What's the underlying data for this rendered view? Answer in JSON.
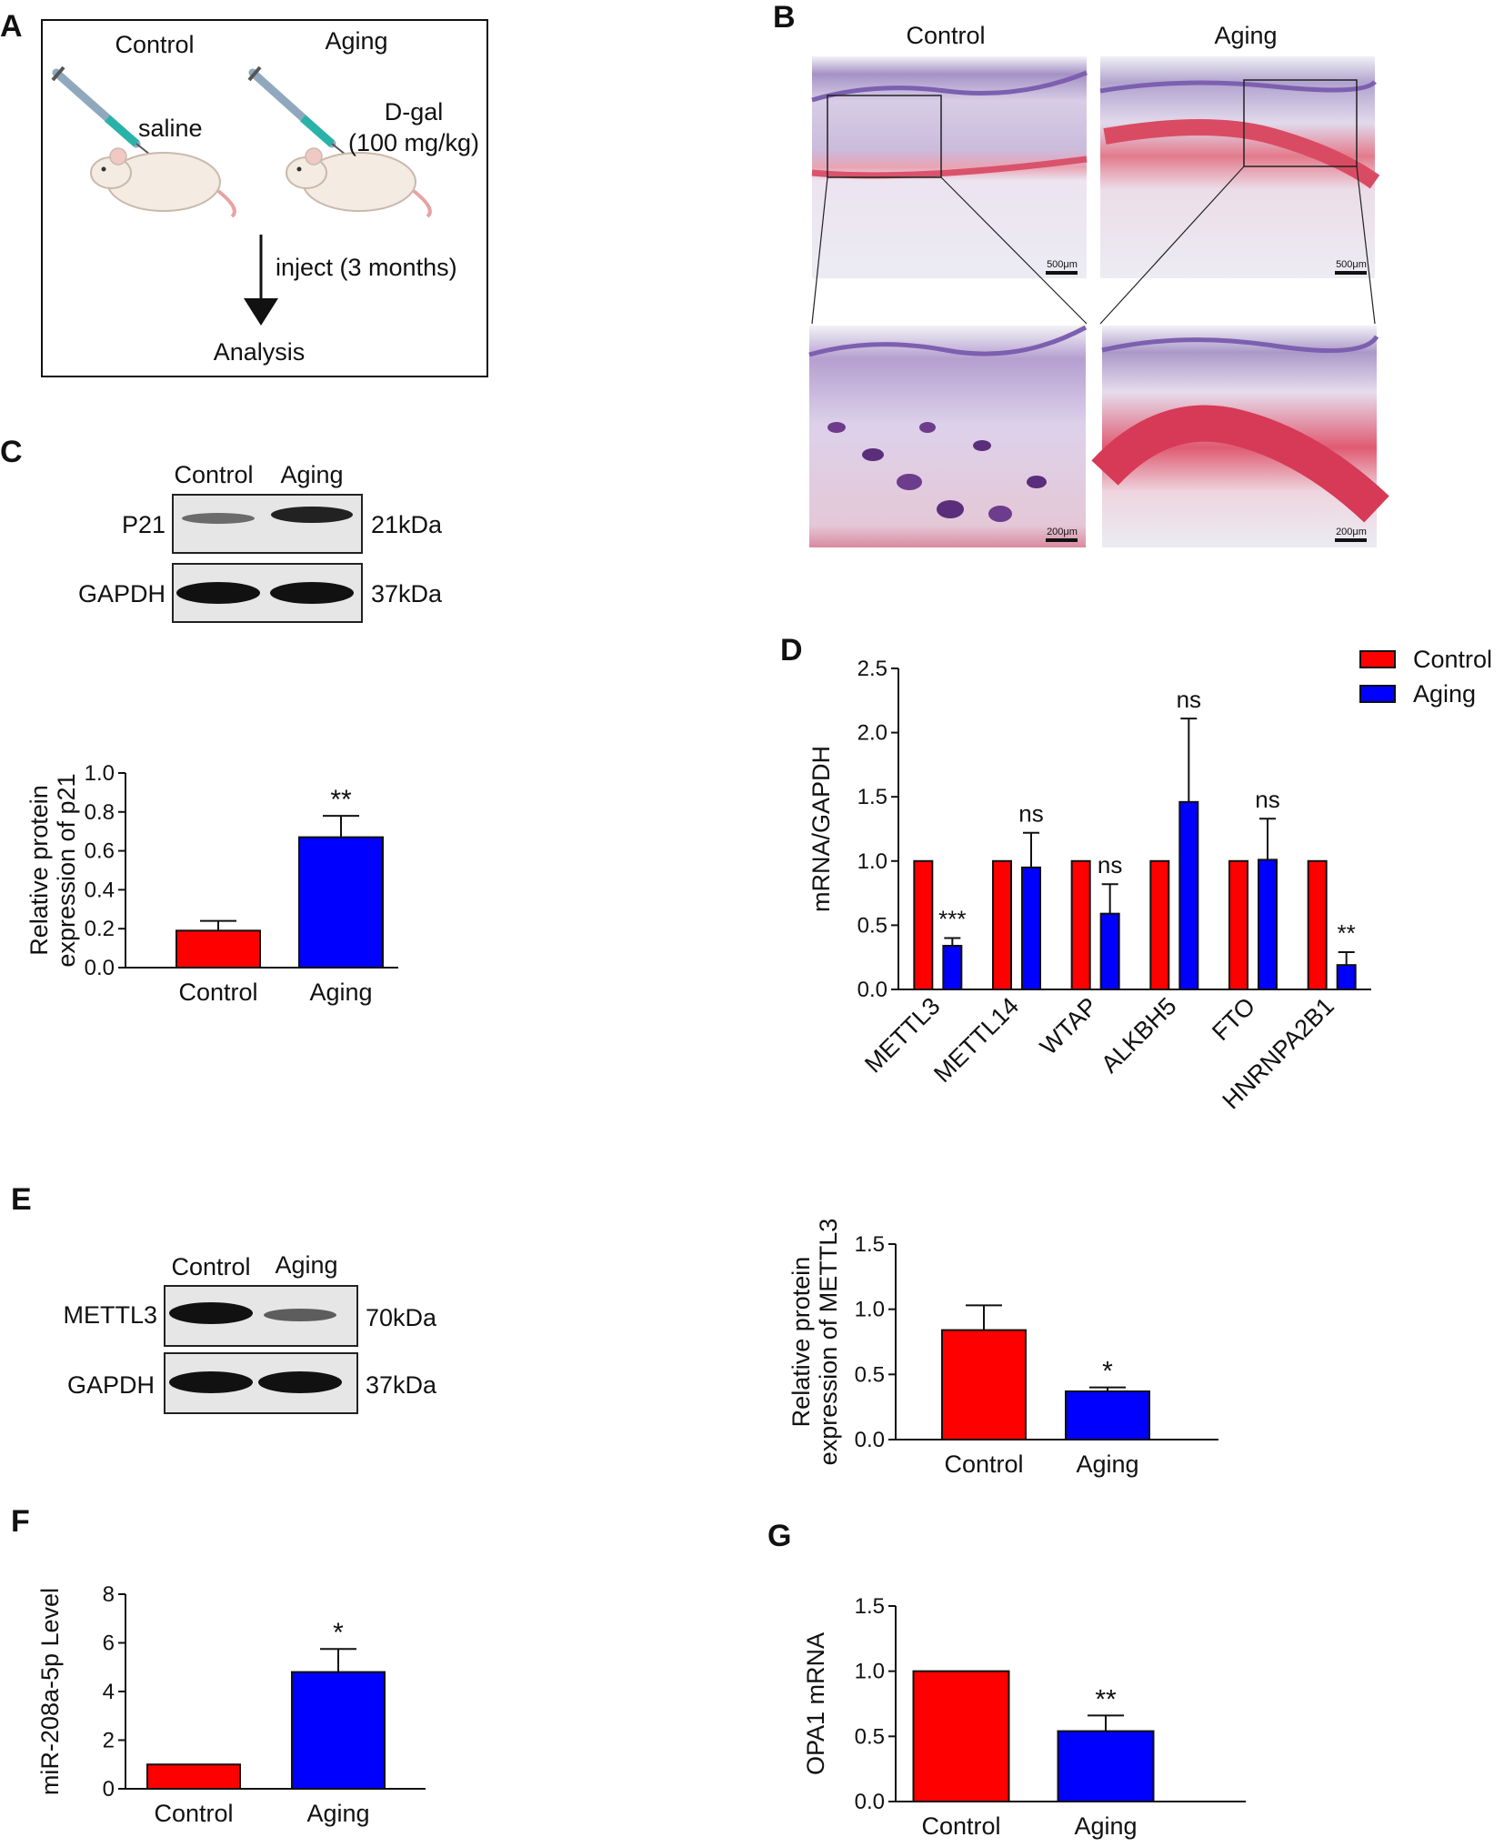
{
  "panel_letters": {
    "A": "A",
    "B": "B",
    "C": "C",
    "D": "D",
    "E": "E",
    "F": "F",
    "G": "G"
  },
  "panelA": {
    "control": "Control",
    "aging": "Aging",
    "saline": "saline",
    "dgal": "D-gal",
    "dose": "(100 mg/kg)",
    "inject": "inject (3 months)",
    "analysis": "Analysis"
  },
  "panelB": {
    "control": "Control",
    "aging": "Aging",
    "scale_top": "500μm",
    "scale_bottom": "200μm"
  },
  "panelC_blot": {
    "control": "Control",
    "aging": "Aging",
    "rows": [
      {
        "name": "P21",
        "kda": "21kDa"
      },
      {
        "name": "GAPDH",
        "kda": "37kDa"
      }
    ]
  },
  "panelE_blot": {
    "control": "Control",
    "aging": "Aging",
    "rows": [
      {
        "name": "METTL3",
        "kda": "70kDa"
      },
      {
        "name": "GAPDH",
        "kda": "37kDa"
      }
    ]
  },
  "colors": {
    "control": "#ff0000",
    "aging": "#0000ff"
  },
  "chart_data": [
    {
      "id": "C",
      "type": "bar",
      "categories": [
        "Control",
        "Aging"
      ],
      "values": [
        0.19,
        0.67
      ],
      "errors": [
        0.05,
        0.11
      ],
      "annotations": [
        "",
        "**"
      ],
      "ylabel_lines": [
        "Relative protein",
        "expression of p21"
      ],
      "ylim": [
        0,
        1.0
      ],
      "yticks": [
        "0.0",
        "0.2",
        "0.4",
        "0.6",
        "0.8",
        "1.0"
      ]
    },
    {
      "id": "D",
      "type": "bar",
      "categories": [
        "METTL3",
        "METTL14",
        "WTAP",
        "ALKBH5",
        "FTO",
        "HNRNPA2B1"
      ],
      "series": [
        {
          "name": "Control",
          "values": [
            1.0,
            1.0,
            1.0,
            1.0,
            1.0,
            1.0
          ],
          "errors": [
            0,
            0,
            0,
            0,
            0,
            0
          ]
        },
        {
          "name": "Aging",
          "values": [
            0.34,
            0.95,
            0.59,
            1.46,
            1.01,
            0.19
          ],
          "errors": [
            0.06,
            0.27,
            0.23,
            0.65,
            0.32,
            0.1
          ]
        }
      ],
      "annotations": [
        "***",
        "ns",
        "ns",
        "ns",
        "ns",
        "**"
      ],
      "ylabel": "mRNA/GAPDH",
      "ylim": [
        0,
        2.5
      ],
      "yticks": [
        "0.0",
        "0.5",
        "1.0",
        "1.5",
        "2.0",
        "2.5"
      ],
      "legend": "top-right"
    },
    {
      "id": "E",
      "type": "bar",
      "categories": [
        "Control",
        "Aging"
      ],
      "values": [
        0.84,
        0.37
      ],
      "errors": [
        0.19,
        0.03
      ],
      "annotations": [
        "",
        "*"
      ],
      "ylabel_lines": [
        "Relative protein",
        "expression of METTL3"
      ],
      "ylim": [
        0,
        1.5
      ],
      "yticks": [
        "0.0",
        "0.5",
        "1.0",
        "1.5"
      ]
    },
    {
      "id": "F",
      "type": "bar",
      "categories": [
        "Control",
        "Aging"
      ],
      "values": [
        1.0,
        4.8
      ],
      "errors": [
        0,
        0.95
      ],
      "annotations": [
        "",
        "*"
      ],
      "ylabel": "miR-208a-5p Level",
      "ylim": [
        0,
        8
      ],
      "yticks": [
        "0",
        "2",
        "4",
        "6",
        "8"
      ]
    },
    {
      "id": "G",
      "type": "bar",
      "categories": [
        "Control",
        "Aging"
      ],
      "values": [
        1.0,
        0.54
      ],
      "errors": [
        0,
        0.12
      ],
      "annotations": [
        "",
        "**"
      ],
      "ylabel": "OPA1 mRNA",
      "ylim": [
        0,
        1.5
      ],
      "yticks": [
        "0.0",
        "0.5",
        "1.0",
        "1.5"
      ]
    }
  ]
}
